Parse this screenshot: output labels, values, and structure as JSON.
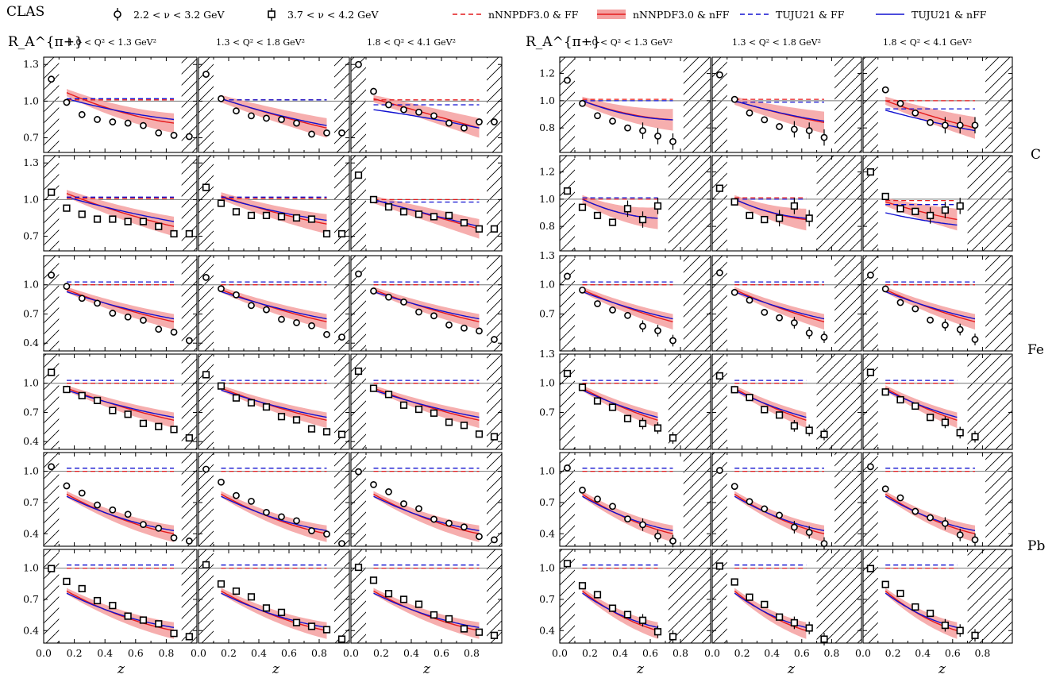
{
  "figure": {
    "experiment": "CLAS",
    "legend_markers": [
      {
        "symbol": "circle",
        "label": "2.2 < ν < 3.2 GeV"
      },
      {
        "symbol": "square",
        "label": "3.7 < ν < 4.2 GeV"
      }
    ],
    "legend_lines": [
      {
        "label": "nNNPDF3.0 & FF",
        "color": "#e41a1c",
        "style": "dashed"
      },
      {
        "label": "nNNPDF3.0 & nFF",
        "color": "#e41a1c",
        "style": "band"
      },
      {
        "label": "TUJU21 & FF",
        "color": "#1010d0",
        "style": "dashed"
      },
      {
        "label": "TUJU21 & nFF",
        "color": "#1010d0",
        "style": "solid"
      }
    ],
    "ylabel_left": "R_A^{π+}",
    "ylabel_right": "R_A^{π−}",
    "q2_bins": [
      "1.0 < Q² < 1.3 GeV²",
      "1.3 < Q² < 1.8 GeV²",
      "1.8 < Q² < 4.1 GeV²"
    ],
    "nuclei": [
      "C",
      "Fe",
      "Pb"
    ],
    "xlabel": "z",
    "x_ticks": [
      "0.0",
      "0.2",
      "0.4",
      "0.6",
      "0.8"
    ]
  },
  "colors": {
    "red": "#e41a1c",
    "blue": "#1010d0",
    "band": "#f4a0a0"
  },
  "chart_data": {
    "type": "scatter",
    "xlim": [
      0,
      1
    ],
    "ylim": {
      "C": [
        0.58,
        1.36
      ],
      "Fe": [
        0.32,
        1.3
      ],
      "Pb": [
        0.28,
        1.18
      ]
    },
    "y_ticks": {
      "C_pip": [
        "0.7",
        "1.0",
        "1.3"
      ],
      "C_pim": [
        "0.8",
        "1.0",
        "1.2"
      ],
      "Fe": [
        "0.4",
        "0.7",
        "1.0"
      ],
      "Fe_pim_top": [
        "0.7",
        "1.0",
        "1.3"
      ],
      "Pb": [
        "0.4",
        "0.7",
        "1.0"
      ],
      "Pb_pim_top": [
        "0.4",
        "0.7",
        "1.0",
        "1.3"
      ]
    },
    "panels": [
      {
        "id": "C-pip-q1-circ",
        "nucleus": "C",
        "pion": "pi+",
        "q2": 0,
        "marker": "circle",
        "x": [
          0.05,
          0.15,
          0.25,
          0.35,
          0.45,
          0.55,
          0.65,
          0.75,
          0.85,
          0.95
        ],
        "y": [
          1.18,
          0.99,
          0.89,
          0.85,
          0.83,
          0.82,
          0.8,
          0.74,
          0.72,
          0.71
        ],
        "curves": {
          "red_ff": [
            1.01,
            1.01,
            1.01
          ],
          "blue_ff": [
            1.02,
            1.02,
            1.02
          ],
          "red_nff": [
            1.07,
            0.88,
            0.82
          ],
          "blue_nff": [
            1.02,
            0.9,
            0.85
          ]
        }
      },
      {
        "id": "C-pip-q2-circ",
        "nucleus": "C",
        "pion": "pi+",
        "q2": 1,
        "marker": "circle",
        "x": [
          0.05,
          0.15,
          0.25,
          0.35,
          0.45,
          0.55,
          0.65,
          0.75,
          0.85,
          0.95
        ],
        "y": [
          1.22,
          1.02,
          0.92,
          0.88,
          0.86,
          0.85,
          0.82,
          0.73,
          0.74,
          0.74
        ],
        "curves": {
          "red_ff": [
            1.01,
            1.01,
            1.01
          ],
          "blue_ff": [
            1.01,
            1.01,
            1.01
          ],
          "red_nff": [
            1.02,
            0.88,
            0.78
          ],
          "blue_nff": [
            1.02,
            0.88,
            0.8
          ]
        }
      },
      {
        "id": "C-pip-q3-circ",
        "nucleus": "C",
        "pion": "pi+",
        "q2": 2,
        "marker": "circle",
        "x": [
          0.05,
          0.15,
          0.25,
          0.35,
          0.45,
          0.55,
          0.65,
          0.75,
          0.85,
          0.95
        ],
        "y": [
          1.3,
          1.08,
          0.97,
          0.93,
          0.91,
          0.88,
          0.82,
          0.78,
          0.83,
          0.83
        ],
        "curves": {
          "red_ff": [
            1.01,
            1.01,
            1.01
          ],
          "blue_ff": [
            0.97,
            0.97,
            0.97
          ],
          "red_nff": [
            1.02,
            0.9,
            0.78
          ],
          "blue_nff": [
            0.93,
            0.87,
            0.78
          ]
        }
      },
      {
        "id": "C-pim-q1-circ",
        "nucleus": "C",
        "pion": "pi-",
        "q2": 0,
        "marker": "circle",
        "x": [
          0.05,
          0.15,
          0.25,
          0.35,
          0.45,
          0.55,
          0.65,
          0.75
        ],
        "y": [
          1.15,
          0.98,
          0.89,
          0.85,
          0.8,
          0.78,
          0.74,
          0.7
        ],
        "curves": {
          "red_ff": [
            1.01,
            1.01,
            1.01
          ],
          "blue_ff": [
            1.0,
            1.0,
            1.0
          ],
          "red_nff": [
            1.0,
            0.88,
            0.86
          ],
          "blue_nff": [
            1.0,
            0.87,
            0.86
          ]
        }
      },
      {
        "id": "C-pim-q2-circ",
        "nucleus": "C",
        "pion": "pi-",
        "q2": 1,
        "marker": "circle",
        "x": [
          0.05,
          0.15,
          0.25,
          0.35,
          0.45,
          0.55,
          0.65,
          0.75
        ],
        "y": [
          1.19,
          1.01,
          0.91,
          0.86,
          0.81,
          0.79,
          0.78,
          0.73
        ],
        "curves": {
          "red_ff": [
            1.01,
            1.01,
            1.01
          ],
          "blue_ff": [
            0.99,
            0.99,
            0.99
          ],
          "red_nff": [
            1.0,
            0.9,
            0.84
          ],
          "blue_nff": [
            1.0,
            0.9,
            0.85
          ]
        }
      },
      {
        "id": "C-pim-q3-circ",
        "nucleus": "C",
        "pion": "pi-",
        "q2": 2,
        "marker": "circle",
        "x": [
          0.15,
          0.25,
          0.35,
          0.45,
          0.55,
          0.65,
          0.75
        ],
        "y": [
          1.08,
          0.98,
          0.91,
          0.84,
          0.82,
          0.82,
          0.82
        ],
        "curves": {
          "red_ff": [
            1.0,
            1.0,
            1.0
          ],
          "blue_ff": [
            0.94,
            0.94,
            0.94
          ],
          "red_nff": [
            1.0,
            0.88,
            0.8
          ],
          "blue_nff": [
            0.93,
            0.84,
            0.78
          ]
        }
      },
      {
        "id": "C-pip-q1-sq",
        "nucleus": "C",
        "pion": "pi+",
        "q2": 0,
        "marker": "square",
        "x": [
          0.05,
          0.15,
          0.25,
          0.35,
          0.45,
          0.55,
          0.65,
          0.75,
          0.85,
          0.95
        ],
        "y": [
          1.06,
          0.93,
          0.88,
          0.84,
          0.84,
          0.82,
          0.82,
          0.78,
          0.72,
          0.72
        ],
        "curves": {
          "red_ff": [
            1.01,
            1.01,
            1.01
          ],
          "blue_ff": [
            1.02,
            1.02,
            1.02
          ],
          "red_nff": [
            1.05,
            0.88,
            0.78
          ],
          "blue_nff": [
            1.02,
            0.9,
            0.82
          ]
        }
      },
      {
        "id": "C-pip-q2-sq",
        "nucleus": "C",
        "pion": "pi+",
        "q2": 1,
        "marker": "square",
        "x": [
          0.05,
          0.15,
          0.25,
          0.35,
          0.45,
          0.55,
          0.65,
          0.75,
          0.85,
          0.95
        ],
        "y": [
          1.1,
          0.97,
          0.9,
          0.87,
          0.87,
          0.86,
          0.85,
          0.84,
          0.72,
          0.72
        ],
        "curves": {
          "red_ff": [
            1.01,
            1.01,
            1.01
          ],
          "blue_ff": [
            1.02,
            1.02,
            1.02
          ],
          "red_nff": [
            1.03,
            0.88,
            0.8
          ],
          "blue_nff": [
            1.02,
            0.89,
            0.83
          ]
        }
      },
      {
        "id": "C-pip-q3-sq",
        "nucleus": "C",
        "pion": "pi+",
        "q2": 2,
        "marker": "square",
        "x": [
          0.05,
          0.15,
          0.25,
          0.35,
          0.45,
          0.55,
          0.65,
          0.75,
          0.85,
          0.95
        ],
        "y": [
          1.2,
          1.0,
          0.94,
          0.9,
          0.88,
          0.86,
          0.87,
          0.81,
          0.76,
          0.76
        ],
        "curves": {
          "red_ff": [
            1.0,
            1.0,
            1.0
          ],
          "blue_ff": [
            0.98,
            0.98,
            0.98
          ],
          "red_nff": [
            1.0,
            0.88,
            0.76
          ],
          "blue_nff": [
            1.0,
            0.88,
            0.78
          ]
        }
      },
      {
        "id": "C-pim-q1-sq",
        "nucleus": "C",
        "pion": "pi-",
        "q2": 0,
        "marker": "square",
        "x": [
          0.05,
          0.15,
          0.25,
          0.35,
          0.45,
          0.55,
          0.65
        ],
        "y": [
          1.06,
          0.94,
          0.88,
          0.83,
          0.93,
          0.85,
          0.95
        ],
        "curves": {
          "red_ff": [
            1.0,
            1.0,
            1.0
          ],
          "blue_ff": [
            1.01,
            1.01,
            1.01
          ],
          "red_nff": [
            1.0,
            0.87,
            0.86
          ],
          "blue_nff": [
            1.0,
            0.87,
            0.86
          ]
        }
      },
      {
        "id": "C-pim-q2-sq",
        "nucleus": "C",
        "pion": "pi-",
        "q2": 1,
        "marker": "square",
        "x": [
          0.05,
          0.15,
          0.25,
          0.35,
          0.45,
          0.55,
          0.65
        ],
        "y": [
          1.08,
          0.98,
          0.88,
          0.85,
          0.86,
          0.95,
          0.86
        ],
        "curves": {
          "red_ff": [
            1.01,
            1.01,
            1.01
          ],
          "blue_ff": [
            1.0,
            1.0,
            1.0
          ],
          "red_nff": [
            1.0,
            0.88,
            0.85
          ],
          "blue_nff": [
            1.0,
            0.88,
            0.86
          ]
        }
      },
      {
        "id": "C-pim-q3-sq",
        "nucleus": "C",
        "pion": "pi-",
        "q2": 2,
        "marker": "square",
        "x": [
          0.05,
          0.15,
          0.25,
          0.35,
          0.45,
          0.55,
          0.65
        ],
        "y": [
          1.2,
          1.02,
          0.93,
          0.91,
          0.88,
          0.92,
          0.95
        ],
        "curves": {
          "red_ff": [
            0.99,
            0.99,
            0.99
          ],
          "blue_ff": [
            0.96,
            0.96,
            0.96
          ],
          "red_nff": [
            0.98,
            0.9,
            0.85
          ],
          "blue_nff": [
            0.9,
            0.84,
            0.81
          ]
        }
      }
    ]
  }
}
